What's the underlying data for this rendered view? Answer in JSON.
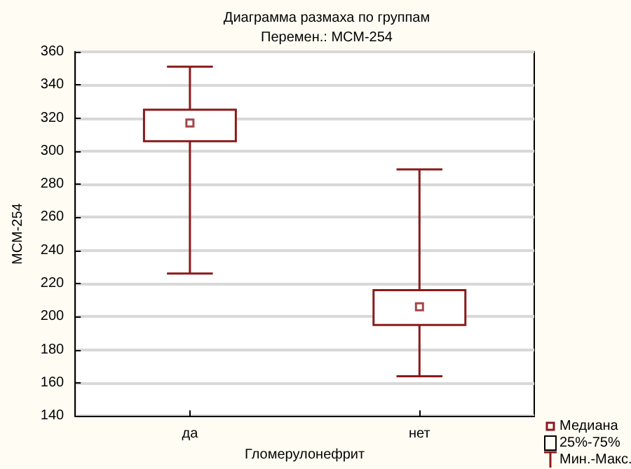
{
  "chart_data": {
    "type": "box",
    "title": "Диаграмма размаха по группам",
    "subtitle": "Перемен.: МСМ-254",
    "xlabel": "Гломерулонефрит",
    "ylabel": "МСМ-254",
    "categories": [
      "да",
      "нет"
    ],
    "color": "#8b1a1a",
    "boxes": [
      {
        "low": 226,
        "q1": 306,
        "median": 317,
        "q3": 325,
        "high": 351
      },
      {
        "low": 164,
        "q1": 195,
        "median": 206,
        "q3": 216,
        "high": 289
      }
    ],
    "ylim": [
      140,
      360
    ],
    "yticks": [
      140,
      160,
      180,
      200,
      220,
      240,
      260,
      280,
      300,
      320,
      340,
      360
    ],
    "grid": "y",
    "annotations": [
      "Медиана",
      "25%-75%",
      "Мин.-Макс."
    ]
  }
}
